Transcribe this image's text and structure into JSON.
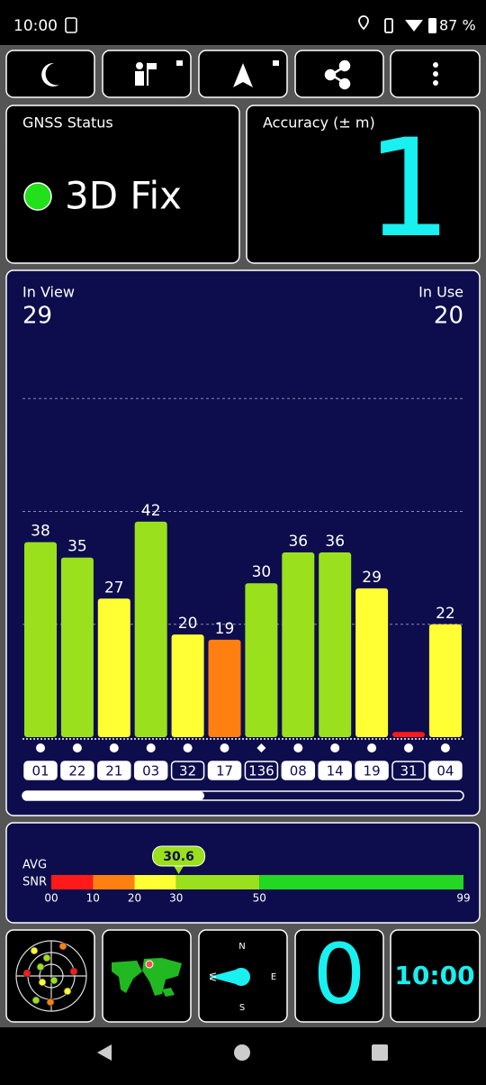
{
  "status_bar": {
    "time": "10:00",
    "battery": "87 %"
  },
  "gnss_status": {
    "title": "GNSS Status",
    "fix": "3D Fix"
  },
  "accuracy": {
    "title": "Accuracy (± m)",
    "value": "1"
  },
  "chart_data": {
    "type": "bar",
    "in_view_label": "In View",
    "in_view": 29,
    "in_use_label": "In Use",
    "in_use": 20,
    "categories": [
      "01",
      "22",
      "21",
      "03",
      "32",
      "17",
      "136",
      "08",
      "14",
      "19",
      "31",
      "04"
    ],
    "values": [
      38,
      35,
      27,
      42,
      20,
      19,
      30,
      36,
      36,
      29,
      1,
      22
    ],
    "value_labels": [
      "38",
      "35",
      "27",
      "42",
      "20",
      "19",
      "30",
      "36",
      "36",
      "29",
      null,
      "22"
    ],
    "colors": [
      "#9be01c",
      "#9be01c",
      "#ffff33",
      "#9be01c",
      "#ffff33",
      "#ff8010",
      "#9be01c",
      "#9be01c",
      "#9be01c",
      "#ffff33",
      "#ff1a1a",
      "#ffff33"
    ],
    "used": [
      true,
      true,
      true,
      true,
      false,
      true,
      false,
      true,
      true,
      true,
      false,
      true
    ],
    "markers": [
      "circle",
      "circle",
      "circle",
      "circle",
      "circle",
      "circle",
      "diamond",
      "circle",
      "circle",
      "circle",
      "circle",
      "circle"
    ],
    "ylim": [
      0,
      88
    ],
    "grid_lines": [
      22,
      44,
      66
    ]
  },
  "snr": {
    "label_avg": "AVG",
    "label_snr": "SNR",
    "value": 30.6,
    "xlim": [
      0,
      99
    ],
    "xticks": [
      {
        "value": 0,
        "label": "00"
      },
      10,
      20,
      30,
      50,
      99
    ],
    "segment_colors": [
      "#ff1a1a",
      "#ff8010",
      "#ffff33",
      "#9be01c",
      "#22d822"
    ],
    "badge_color": "#9be01c"
  },
  "tiles": {
    "compass": {
      "n": "N",
      "e": "E",
      "s": "S",
      "w": "W"
    },
    "speed": "0",
    "clock": "10:00"
  }
}
